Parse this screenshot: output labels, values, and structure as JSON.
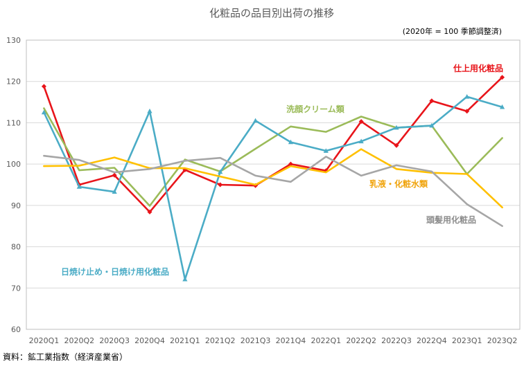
{
  "chart_data": {
    "type": "line",
    "title": "化粧品の品目別出荷の推移",
    "subtitle": "(2020年 = 100 季節調整済)",
    "source": "資料：鉱工業指数（経済産業省）",
    "xlabel": "",
    "ylabel": "",
    "ylim": [
      60,
      130
    ],
    "yticks": [
      60,
      70,
      80,
      90,
      100,
      110,
      120,
      130
    ],
    "grid": true,
    "categories": [
      "2020Q1",
      "2020Q2",
      "2020Q3",
      "2020Q4",
      "2021Q1",
      "2021Q2",
      "2021Q3",
      "2021Q4",
      "2022Q1",
      "2022Q2",
      "2022Q3",
      "2022Q4",
      "2023Q1",
      "2023Q2"
    ],
    "series": [
      {
        "name": "仕上用化粧品",
        "color": "#e8141a",
        "marker": "diamond",
        "values": [
          118.8,
          95.0,
          97.3,
          88.4,
          98.6,
          95.0,
          94.8,
          100.0,
          98.4,
          110.3,
          104.5,
          115.3,
          112.8,
          121.0
        ]
      },
      {
        "name": "洗顔クリーム類",
        "color": "#9bbb59",
        "marker": "none",
        "values": [
          113.5,
          98.5,
          99.1,
          89.9,
          101.1,
          98.2,
          103.7,
          109.1,
          107.8,
          111.5,
          108.8,
          109.3,
          97.6,
          106.3
        ]
      },
      {
        "name": "日焼け止め・日焼け用化粧品",
        "color": "#4bacc6",
        "marker": "triangle",
        "values": [
          112.5,
          94.5,
          93.3,
          112.8,
          72.1,
          98.1,
          110.5,
          105.3,
          103.2,
          105.5,
          108.8,
          109.3,
          116.3,
          113.8
        ]
      },
      {
        "name": "乳液・化粧水類",
        "color": "#ffc000",
        "marker": "none",
        "values": [
          99.5,
          99.6,
          101.6,
          99.0,
          99.0,
          97.0,
          95.0,
          99.5,
          98.0,
          103.6,
          98.8,
          97.9,
          97.6,
          89.5
        ]
      },
      {
        "name": "頭髪用化粧品",
        "color": "#a6a6a6",
        "marker": "none",
        "values": [
          102.0,
          101.0,
          98.0,
          98.8,
          100.8,
          101.5,
          97.2,
          95.7,
          101.8,
          97.2,
          99.7,
          98.2,
          90.3,
          85.0
        ]
      }
    ],
    "annotations": [
      {
        "text": "仕上用化粧品",
        "color": "#e8141a"
      },
      {
        "text": "洗顔クリーム類",
        "color": "#9bbb59"
      },
      {
        "text": "日焼け止め・日焼け用化粧品",
        "color": "#4bacc6"
      },
      {
        "text": "乳液・化粧水類",
        "color": "#f0a30a"
      },
      {
        "text": "頭髪用化粧品",
        "color": "#8c8c8c"
      }
    ]
  }
}
